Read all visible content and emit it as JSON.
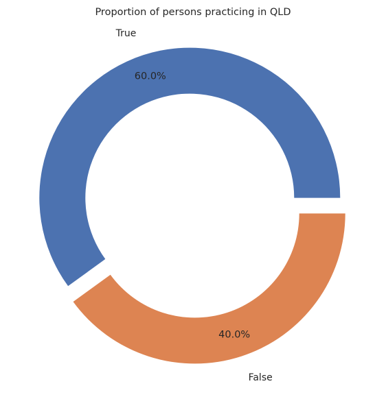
{
  "chart_data": {
    "type": "pie",
    "title": "Proportion of persons practicing in QLD",
    "categories": [
      "True",
      "False"
    ],
    "values": [
      60.0,
      40.0
    ],
    "value_labels": [
      "60.0%",
      "40.0%"
    ],
    "colors": [
      "#4c72b0",
      "#dd8452"
    ],
    "donut": true,
    "exploded": true,
    "legend": "none"
  }
}
